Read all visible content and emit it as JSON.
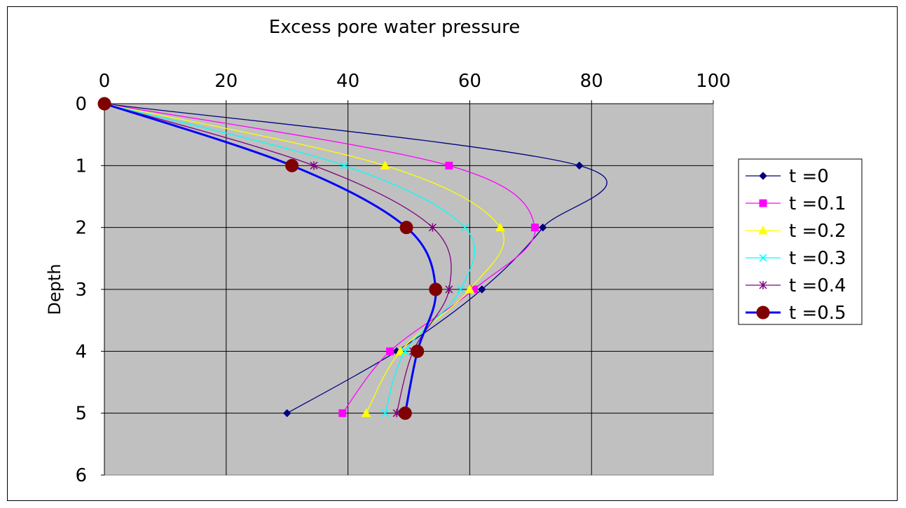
{
  "chart_data": {
    "type": "line",
    "title": "Excess pore water pressure",
    "xlabel": "",
    "ylabel": "Depth",
    "x_axis_position": "top",
    "y_axis_inverted": true,
    "xlim": [
      0,
      100
    ],
    "ylim": [
      0,
      6
    ],
    "x_ticks": [
      "0",
      "20",
      "40",
      "60",
      "80",
      "100"
    ],
    "y_ticks": [
      "0",
      "1",
      "2",
      "3",
      "4",
      "5",
      "6"
    ],
    "grid": true,
    "plot_background": "#C0C0C0",
    "legend_position": "right",
    "smooth": true,
    "series": [
      {
        "name": "t =0",
        "color": "#000080",
        "marker": "diamond",
        "line_width": 1.3,
        "points": [
          [
            0,
            0
          ],
          [
            78,
            1
          ],
          [
            72,
            2
          ],
          [
            62,
            3
          ],
          [
            48,
            4
          ],
          [
            30,
            5
          ]
        ]
      },
      {
        "name": "t =0.1",
        "color": "#FF00FF",
        "marker": "square",
        "line_width": 1.3,
        "points": [
          [
            0,
            0
          ],
          [
            56.6,
            1
          ],
          [
            70.7,
            2
          ],
          [
            60.7,
            3
          ],
          [
            46.9,
            4
          ],
          [
            39.1,
            5
          ]
        ]
      },
      {
        "name": "t =0.2",
        "color": "#FFFF00",
        "marker": "triangle",
        "line_width": 1.3,
        "points": [
          [
            0,
            0
          ],
          [
            46.1,
            1
          ],
          [
            65,
            2
          ],
          [
            60,
            3
          ],
          [
            48.6,
            4
          ],
          [
            43,
            5
          ]
        ]
      },
      {
        "name": "t =0.3",
        "color": "#00FFFF",
        "marker": "x",
        "line_width": 1.3,
        "points": [
          [
            0,
            0
          ],
          [
            39.4,
            1
          ],
          [
            59.2,
            2
          ],
          [
            58.5,
            3
          ],
          [
            49.4,
            4
          ],
          [
            46.1,
            5
          ]
        ]
      },
      {
        "name": "t =0.4",
        "color": "#800080",
        "marker": "star",
        "line_width": 1.3,
        "points": [
          [
            0,
            0
          ],
          [
            34.4,
            1
          ],
          [
            53.9,
            2
          ],
          [
            56.6,
            3
          ],
          [
            50.7,
            4
          ],
          [
            48,
            5
          ]
        ]
      },
      {
        "name": "t =0.5",
        "color": "#0000FF",
        "marker": "circle",
        "marker_color": "#800000",
        "line_width": 3,
        "points": [
          [
            0,
            0
          ],
          [
            30.8,
            1
          ],
          [
            49.6,
            2
          ],
          [
            54.4,
            3
          ],
          [
            51.4,
            4
          ],
          [
            49.4,
            5
          ]
        ]
      }
    ]
  }
}
